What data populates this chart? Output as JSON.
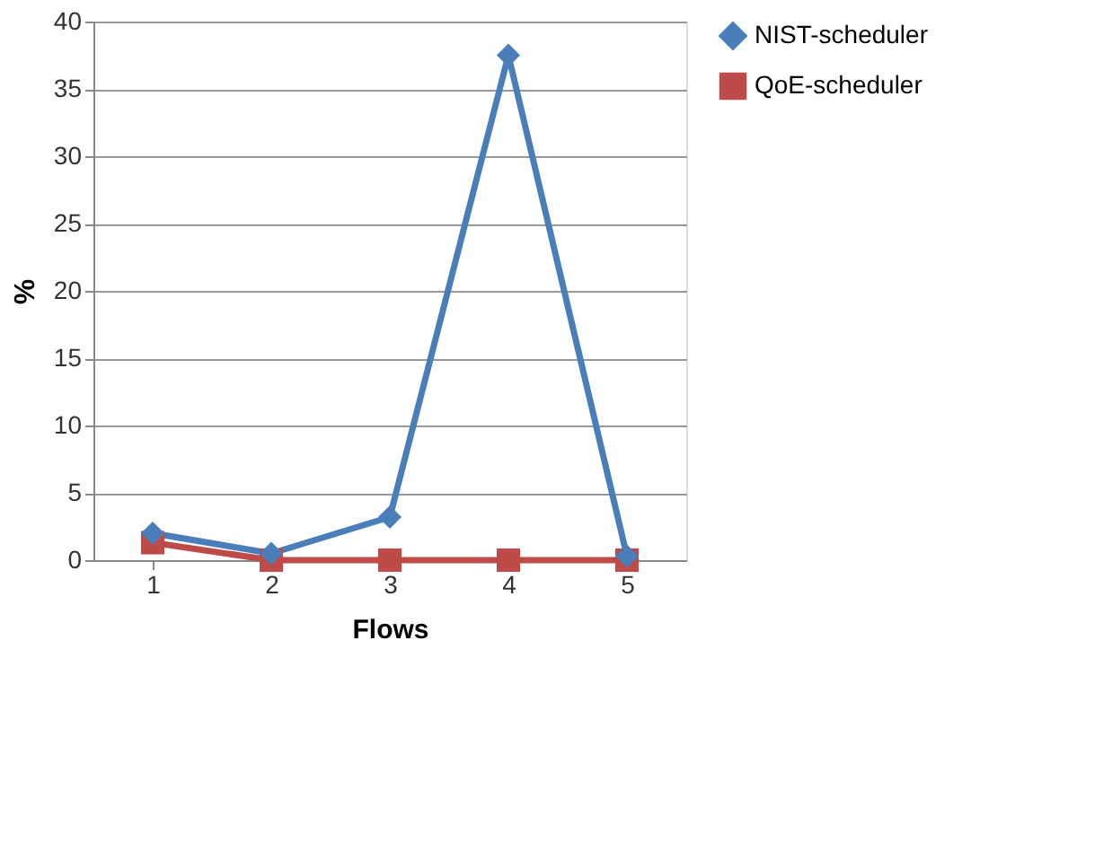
{
  "chart_data": {
    "type": "line",
    "xlabel": "Flows",
    "ylabel": "%",
    "categories": [
      "1",
      "2",
      "3",
      "4",
      "5"
    ],
    "series": [
      {
        "name": "NIST-scheduler",
        "color": "#4a7ebb",
        "marker": "diamond",
        "values": [
          2,
          0.5,
          3.2,
          37.5,
          0.3
        ]
      },
      {
        "name": "QoE-scheduler",
        "color": "#be4b48",
        "marker": "square",
        "values": [
          1.3,
          0,
          0,
          0,
          0
        ]
      }
    ],
    "ylim": [
      0,
      40
    ],
    "yticks": [
      0,
      5,
      10,
      15,
      20,
      25,
      30,
      35,
      40
    ],
    "grid": "y",
    "legend": "right",
    "line_style": "solid"
  }
}
